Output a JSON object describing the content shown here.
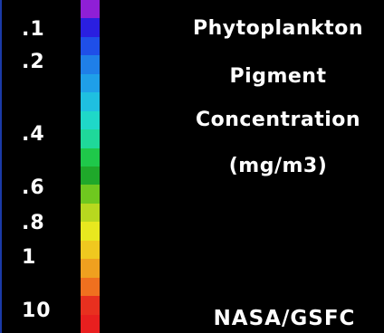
{
  "legend": {
    "title_lines": [
      "Phytoplankton",
      "Pigment",
      "Concentration",
      "(mg/m3)"
    ],
    "credit": "NASA/GSFC",
    "tick_labels": [
      ".1",
      ".2",
      ".4",
      ".6",
      ".8",
      "1",
      "10"
    ],
    "colors": [
      "#8f1fd6",
      "#2a1fe0",
      "#1f4fe8",
      "#1f7fe8",
      "#1f9fe8",
      "#1fbfe0",
      "#1fd8c8",
      "#1fd89a",
      "#1fc84a",
      "#1fa82a",
      "#6fc81f",
      "#b8d81f",
      "#e8e81f",
      "#f0c81f",
      "#f0a01f",
      "#f0701f",
      "#e8301f",
      "#e81f1f"
    ]
  }
}
